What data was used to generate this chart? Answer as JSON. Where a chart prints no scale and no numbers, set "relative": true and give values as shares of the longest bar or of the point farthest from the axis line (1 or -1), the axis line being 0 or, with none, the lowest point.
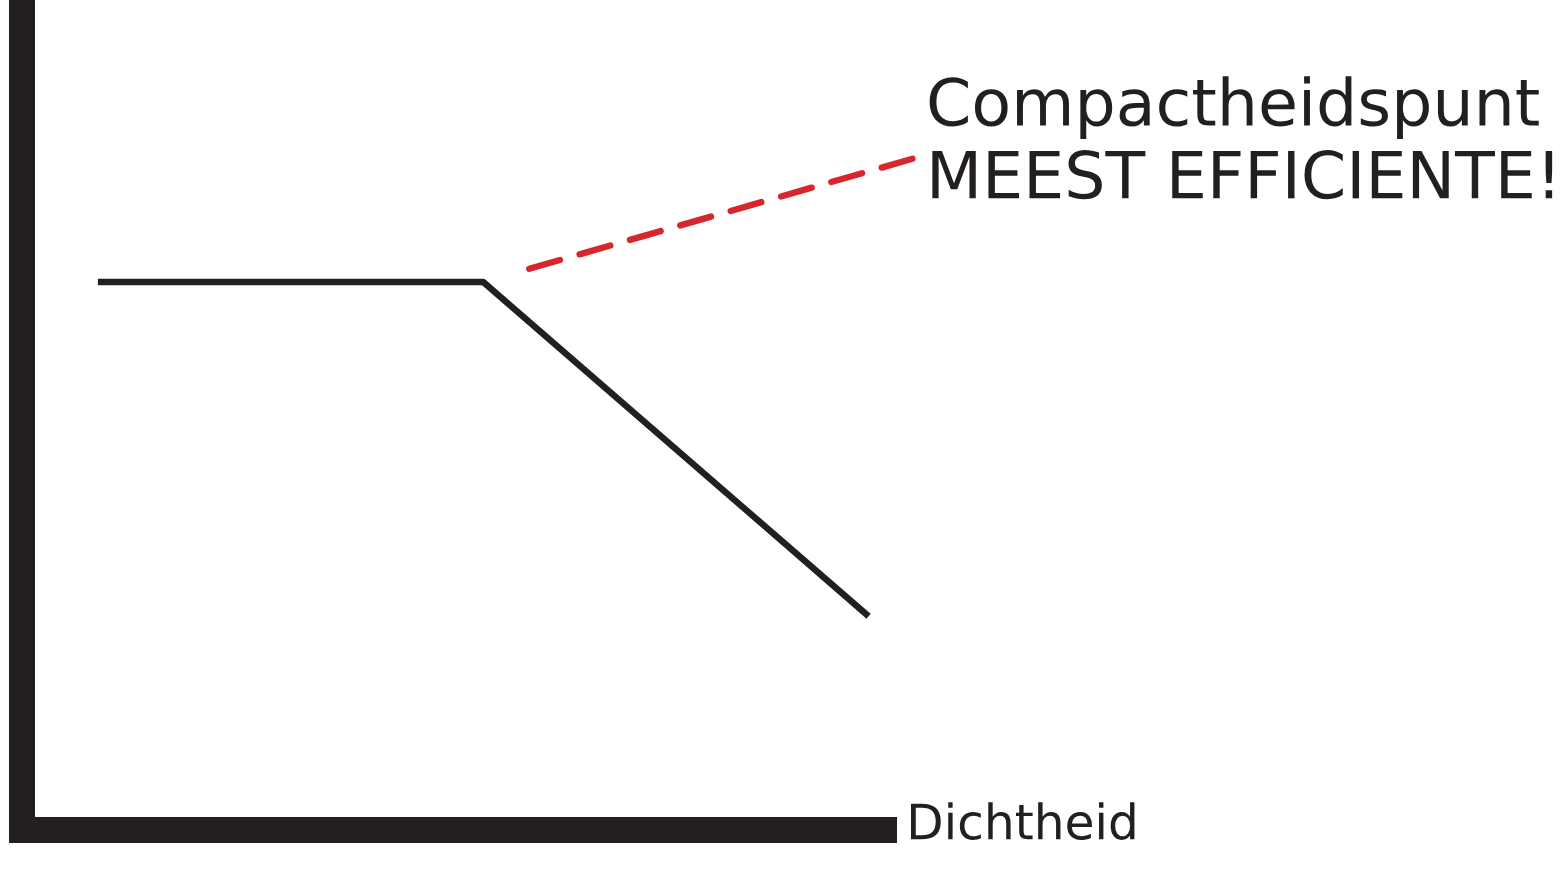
{
  "chart_data": {
    "type": "line",
    "relative": true,
    "categories": [
      null,
      null,
      null
    ],
    "series": [
      {
        "color": "#231f20",
        "values": [
          1,
          1,
          0.39
        ]
      }
    ],
    "xlabel": "Dichtheid",
    "annotations": [
      "Compactheidspunt\nMEEST EFFICIENTE!"
    ],
    "line_style": "solid"
  }
}
